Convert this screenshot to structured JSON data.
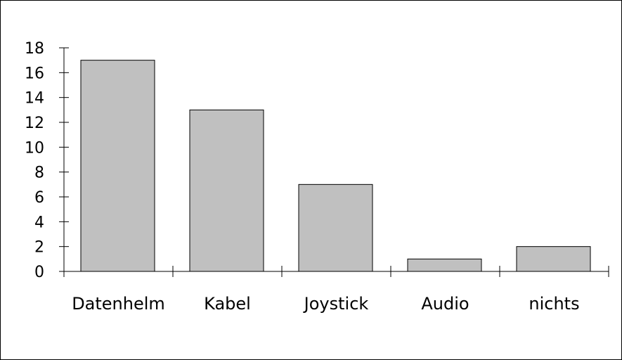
{
  "chart_data": {
    "type": "bar",
    "categories": [
      "Datenhelm",
      "Kabel",
      "Joystick",
      "Audio",
      "nichts"
    ],
    "values": [
      17,
      13,
      7,
      1,
      2
    ],
    "title": "",
    "xlabel": "",
    "ylabel": "",
    "ylim": [
      0,
      18
    ],
    "yticks": [
      "0",
      "2",
      "4",
      "6",
      "8",
      "10",
      "12",
      "14",
      "16",
      "18"
    ],
    "grid": false,
    "legend": "none",
    "colors": {
      "bar_fill": "#c0c0c0",
      "bar_stroke": "#000000",
      "axis": "#000000",
      "frame": "#000000",
      "background": "#ffffff"
    }
  }
}
